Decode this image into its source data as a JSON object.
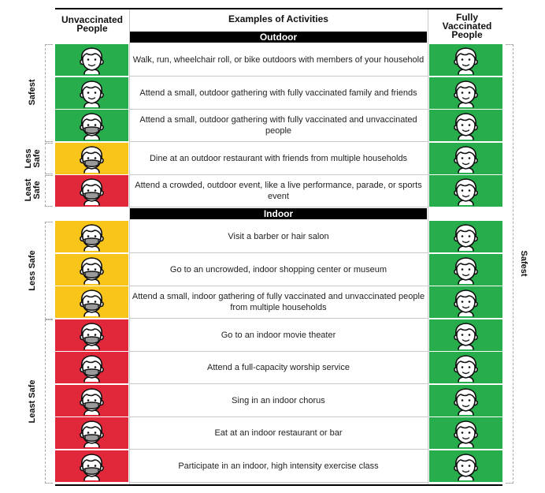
{
  "headers": {
    "unvaccinated": "Unvaccinated People",
    "activities": "Examples of Activities",
    "vaccinated": "Fully Vaccinated People"
  },
  "sections": {
    "outdoor": "Outdoor",
    "indoor": "Indoor"
  },
  "colors": {
    "green": "#27ad4b",
    "yellow": "#f9c51a",
    "red": "#e0283a"
  },
  "left_labels": {
    "safest": "Safest",
    "less_safe_outdoor": "Less Safe",
    "least_safe_outdoor": "Least Safe",
    "less_safe_indoor": "Less Safe",
    "least_safe_indoor": "Least Safe"
  },
  "right_label": "Safest",
  "outdoor_rows": [
    {
      "activity": "Walk, run, wheelchair roll, or bike outdoors with members of your household",
      "unvax_color": "green",
      "unvax_mask": false,
      "vax_color": "green"
    },
    {
      "activity": "Attend a small, outdoor gathering with fully vaccinated family and friends",
      "unvax_color": "green",
      "unvax_mask": false,
      "vax_color": "green"
    },
    {
      "activity": "Attend a small, outdoor gathering with fully vaccinated and unvaccinated people",
      "unvax_color": "green",
      "unvax_mask": true,
      "vax_color": "green"
    },
    {
      "activity": "Dine at an outdoor restaurant with friends from multiple households",
      "unvax_color": "yellow",
      "unvax_mask": true,
      "vax_color": "green"
    },
    {
      "activity": "Attend a crowded, outdoor event, like a live performance, parade, or sports event",
      "unvax_color": "red",
      "unvax_mask": true,
      "vax_color": "green"
    }
  ],
  "indoor_rows": [
    {
      "activity": "Visit a barber or hair salon",
      "unvax_color": "yellow",
      "unvax_mask": true,
      "vax_color": "green"
    },
    {
      "activity": "Go to an uncrowded, indoor shopping center or museum",
      "unvax_color": "yellow",
      "unvax_mask": true,
      "vax_color": "green"
    },
    {
      "activity": "Attend a small, indoor gathering of fully vaccinated and unvaccinated people from multiple households",
      "unvax_color": "yellow",
      "unvax_mask": true,
      "vax_color": "green"
    },
    {
      "activity": "Go to an indoor movie theater",
      "unvax_color": "red",
      "unvax_mask": true,
      "vax_color": "green"
    },
    {
      "activity": "Attend a full-capacity worship service",
      "unvax_color": "red",
      "unvax_mask": true,
      "vax_color": "green"
    },
    {
      "activity": "Sing in an indoor chorus",
      "unvax_color": "red",
      "unvax_mask": true,
      "vax_color": "green"
    },
    {
      "activity": "Eat at an indoor restaurant or bar",
      "unvax_color": "red",
      "unvax_mask": true,
      "vax_color": "green"
    },
    {
      "activity": "Participate in an indoor, high intensity exercise class",
      "unvax_color": "red",
      "unvax_mask": true,
      "vax_color": "green"
    }
  ]
}
